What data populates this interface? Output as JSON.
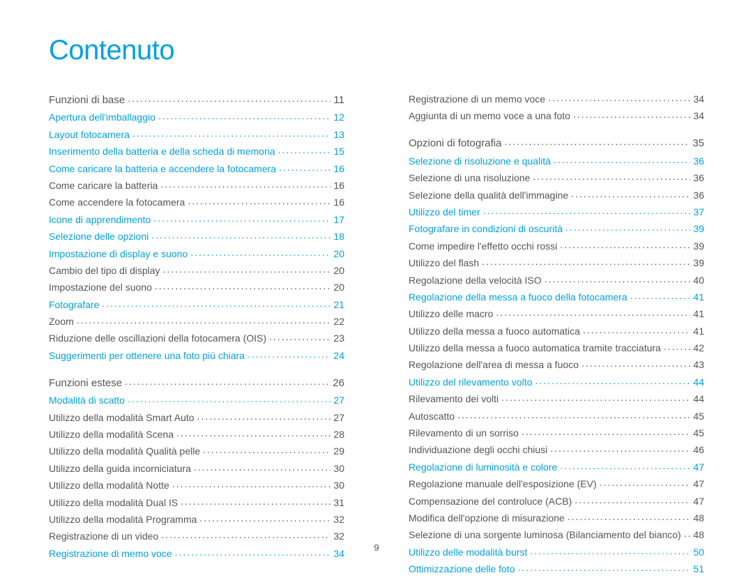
{
  "title": "Contenuto",
  "page_number": "9",
  "colors": {
    "accent": "#00a1e1",
    "text": "#555555",
    "section_text": "#555555"
  },
  "left_column": [
    {
      "label": "Funzioni di base",
      "page": "11",
      "type": "section",
      "link": false
    },
    {
      "label": "Apertura dell'imballaggio",
      "page": "12",
      "type": "item",
      "link": true
    },
    {
      "label": "Layout fotocamera",
      "page": "13",
      "type": "item",
      "link": true
    },
    {
      "label": "Inserimento della batteria e della scheda di memoria",
      "page": "15",
      "type": "item",
      "link": true
    },
    {
      "label": "Come caricare la batteria e accendere la fotocamera",
      "page": "16",
      "type": "item",
      "link": true
    },
    {
      "label": "Come caricare la batteria",
      "page": "16",
      "type": "item",
      "link": false
    },
    {
      "label": "Come accendere la fotocamera",
      "page": "16",
      "type": "item",
      "link": false
    },
    {
      "label": "Icone di apprendimento",
      "page": "17",
      "type": "item",
      "link": true
    },
    {
      "label": "Selezione delle opzioni",
      "page": "18",
      "type": "item",
      "link": true
    },
    {
      "label": "Impostazione di display e suono",
      "page": "20",
      "type": "item",
      "link": true
    },
    {
      "label": "Cambio del tipo di display",
      "page": "20",
      "type": "item",
      "link": false
    },
    {
      "label": "Impostazione del suono",
      "page": "20",
      "type": "item",
      "link": false
    },
    {
      "label": "Fotografare",
      "page": "21",
      "type": "item",
      "link": true
    },
    {
      "label": "Zoom",
      "page": "22",
      "type": "item",
      "link": false
    },
    {
      "label": "Riduzione delle oscillazioni della fotocamera (OIS)",
      "page": "23",
      "type": "item",
      "link": false
    },
    {
      "label": "Suggerimenti per ottenere una foto più chiara",
      "page": "24",
      "type": "item",
      "link": true
    },
    {
      "label": "Funzioni estese",
      "page": "26",
      "type": "section-spaced",
      "link": false
    },
    {
      "label": "Modalità di scatto",
      "page": "27",
      "type": "item",
      "link": true
    },
    {
      "label": "Utilizzo della modalità Smart Auto",
      "page": "27",
      "type": "item",
      "link": false
    },
    {
      "label": "Utilizzo della modalità Scena",
      "page": "28",
      "type": "item",
      "link": false
    },
    {
      "label": "Utilizzo della modalità Qualità pelle",
      "page": "29",
      "type": "item",
      "link": false
    },
    {
      "label": "Utilizzo della guida incorniciatura",
      "page": "30",
      "type": "item",
      "link": false
    },
    {
      "label": "Utilizzo della modalità Notte",
      "page": "30",
      "type": "item",
      "link": false
    },
    {
      "label": "Utilizzo della modalità Dual IS",
      "page": "31",
      "type": "item",
      "link": false
    },
    {
      "label": "Utilizzo della modalità Programma",
      "page": "32",
      "type": "item",
      "link": false
    },
    {
      "label": "Registrazione di un video",
      "page": "32",
      "type": "item",
      "link": false
    },
    {
      "label": "Registrazione di memo voce",
      "page": "34",
      "type": "item",
      "link": true
    }
  ],
  "right_column": [
    {
      "label": "Registrazione di un memo voce",
      "page": "34",
      "type": "item",
      "link": false
    },
    {
      "label": "Aggiunta di un memo voce a una foto",
      "page": "34",
      "type": "item",
      "link": false
    },
    {
      "label": "Opzioni di fotografia",
      "page": "35",
      "type": "section-spaced",
      "link": false
    },
    {
      "label": "Selezione di risoluzione e qualità",
      "page": "36",
      "type": "item",
      "link": true
    },
    {
      "label": "Selezione di una risoluzione",
      "page": "36",
      "type": "item",
      "link": false
    },
    {
      "label": "Selezione della qualità dell'immagine",
      "page": "36",
      "type": "item",
      "link": false
    },
    {
      "label": "Utilizzo del timer",
      "page": "37",
      "type": "item",
      "link": true
    },
    {
      "label": "Fotografare in condizioni di oscurità",
      "page": "39",
      "type": "item",
      "link": true
    },
    {
      "label": "Come impedire l'effetto occhi rossi",
      "page": "39",
      "type": "item",
      "link": false
    },
    {
      "label": "Utilizzo del flash",
      "page": "39",
      "type": "item",
      "link": false
    },
    {
      "label": "Regolazione della velocità ISO",
      "page": "40",
      "type": "item",
      "link": false
    },
    {
      "label": "Regolazione della messa a fuoco della fotocamera",
      "page": "41",
      "type": "item",
      "link": true
    },
    {
      "label": "Utilizzo delle macro",
      "page": "41",
      "type": "item",
      "link": false
    },
    {
      "label": "Utilizzo della messa a fuoco automatica",
      "page": "41",
      "type": "item",
      "link": false
    },
    {
      "label": "Utilizzo della messa a fuoco automatica tramite tracciatura",
      "page": "42",
      "type": "item",
      "link": false
    },
    {
      "label": "Regolazione dell'area di messa a fuoco",
      "page": "43",
      "type": "item",
      "link": false
    },
    {
      "label": "Utilizzo del rilevamento volto",
      "page": "44",
      "type": "item",
      "link": true
    },
    {
      "label": "Rilevamento dei volti",
      "page": "44",
      "type": "item",
      "link": false
    },
    {
      "label": "Autoscatto",
      "page": "45",
      "type": "item",
      "link": false
    },
    {
      "label": "Rilevamento di un sorriso",
      "page": "45",
      "type": "item",
      "link": false
    },
    {
      "label": "Individuazione degli occhi chiusi",
      "page": "46",
      "type": "item",
      "link": false
    },
    {
      "label": "Regolazione di luminosità e colore",
      "page": "47",
      "type": "item",
      "link": true
    },
    {
      "label": "Regolazione manuale dell'esposizione (EV)",
      "page": "47",
      "type": "item",
      "link": false
    },
    {
      "label": "Compensazione del controluce (ACB)",
      "page": "47",
      "type": "item",
      "link": false
    },
    {
      "label": "Modifica dell'opzione di misurazione",
      "page": "48",
      "type": "item",
      "link": false
    },
    {
      "label": "Selezione di una sorgente luminosa (Bilanciamento del bianco)",
      "page": "48",
      "type": "item",
      "link": false
    },
    {
      "label": "Utilizzo delle modalità burst",
      "page": "50",
      "type": "item",
      "link": true
    },
    {
      "label": "Ottimizzazione delle foto",
      "page": "51",
      "type": "item",
      "link": true
    }
  ]
}
